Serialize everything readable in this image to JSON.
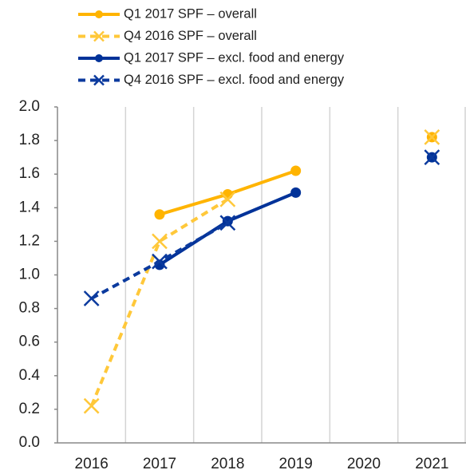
{
  "chart_data": {
    "type": "line",
    "categories": [
      "2016",
      "2017",
      "2018",
      "2019",
      "2020",
      "2021"
    ],
    "series": [
      {
        "name": "Q1 2017 SPF – overall",
        "color": "#FFB400",
        "line_style": "solid",
        "marker": "circle",
        "values": [
          null,
          1.36,
          1.48,
          1.62,
          null,
          1.82
        ]
      },
      {
        "name": "Q4 2016 SPF – overall",
        "color": "#FFC83A",
        "line_style": "dashed",
        "marker": "x",
        "values": [
          0.22,
          1.2,
          1.45,
          null,
          null,
          1.82
        ]
      },
      {
        "name": "Q1 2017 SPF – excl. food and energy",
        "color": "#003299",
        "line_style": "solid",
        "marker": "circle",
        "values": [
          null,
          1.06,
          1.32,
          1.49,
          null,
          1.7
        ]
      },
      {
        "name": "Q4 2016 SPF – excl. food and energy",
        "color": "#0B3A9E",
        "line_style": "dashed",
        "marker": "x",
        "values": [
          0.86,
          1.08,
          1.31,
          null,
          null,
          1.7
        ]
      }
    ],
    "ylim": [
      0,
      2
    ],
    "yticks": [
      {
        "value": 0,
        "label": "0.0"
      },
      0.2,
      0.4,
      0.6,
      0.8,
      {
        "value": 1,
        "label": "1.0"
      },
      1.2,
      1.4,
      1.6,
      1.8,
      {
        "value": 2,
        "label": "2.0"
      }
    ],
    "grid": "vertical",
    "legend": "top"
  }
}
